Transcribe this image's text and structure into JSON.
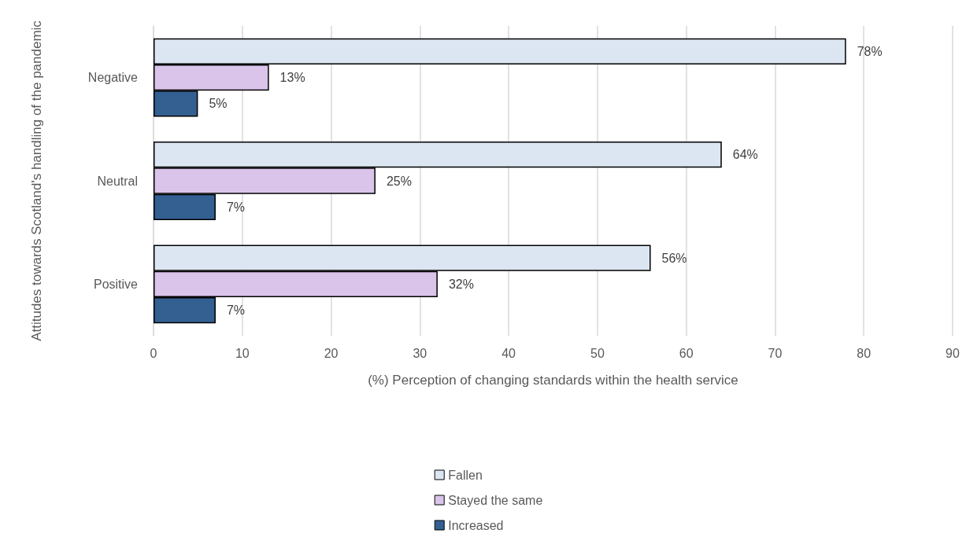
{
  "chart_data": {
    "type": "bar",
    "orientation": "horizontal",
    "xlabel": "(%) Perception of changing standards within the health service",
    "ylabel": "Attitudes towards Scotland's handling of the pandemic",
    "categories": [
      "Negative",
      "Neutral",
      "Positive"
    ],
    "series": [
      {
        "name": "Fallen",
        "color": "#dce6f2",
        "values": [
          78,
          64,
          56
        ],
        "value_labels": [
          "78%",
          "64%",
          "56%"
        ]
      },
      {
        "name": "Stayed the same",
        "color": "#dac4ea",
        "values": [
          13,
          25,
          32
        ],
        "value_labels": [
          "13%",
          "25%",
          "32%"
        ]
      },
      {
        "name": "Increased",
        "color": "#335f91",
        "values": [
          5,
          7,
          7
        ],
        "value_labels": [
          "5%",
          "7%",
          "7%"
        ]
      }
    ],
    "xlim": [
      0,
      90
    ],
    "xticks": [
      0,
      10,
      20,
      30,
      40,
      50,
      60,
      70,
      80,
      90
    ],
    "grid": "x",
    "legend": "bottom"
  }
}
